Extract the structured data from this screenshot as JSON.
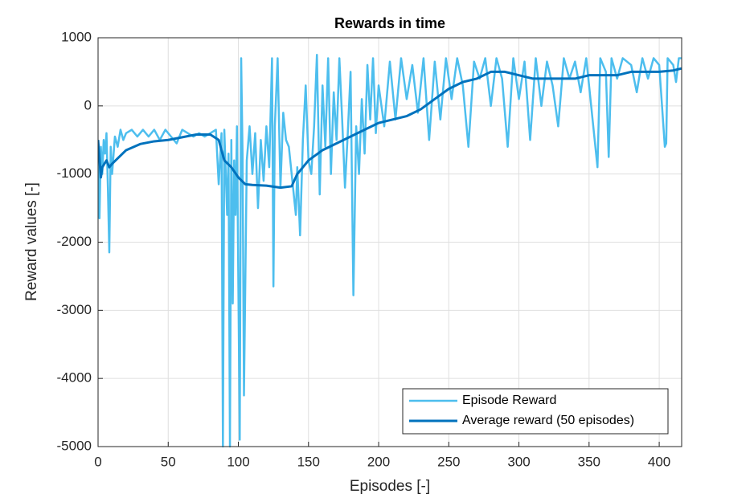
{
  "chart_data": {
    "type": "line",
    "title": "Rewards in time",
    "xlabel": "Episodes [-]",
    "ylabel": "Reward values [-]",
    "xlim": [
      0,
      416
    ],
    "ylim": [
      -5000,
      1000
    ],
    "xticks": [
      0,
      50,
      100,
      150,
      200,
      250,
      300,
      350,
      400
    ],
    "yticks": [
      1000,
      0,
      -1000,
      -2000,
      -3000,
      -4000,
      -5000
    ],
    "grid": true,
    "legend": "lower right",
    "series": [
      {
        "name": "Episode Reward",
        "color": "#4dbeee",
        "x": [
          0,
          1,
          2,
          3,
          4,
          5,
          6,
          7,
          8,
          9,
          10,
          12,
          14,
          16,
          18,
          20,
          24,
          28,
          32,
          36,
          40,
          44,
          48,
          52,
          56,
          60,
          64,
          68,
          72,
          76,
          80,
          84,
          86,
          88,
          89,
          90,
          92,
          93,
          94,
          95,
          96,
          97,
          98,
          99,
          101,
          102,
          103,
          104,
          106,
          108,
          110,
          112,
          114,
          116,
          118,
          120,
          122,
          124,
          125,
          126,
          128,
          130,
          132,
          134,
          136,
          138,
          140,
          141,
          142,
          144,
          146,
          148,
          150,
          152,
          154,
          156,
          158,
          160,
          162,
          164,
          166,
          168,
          170,
          172,
          174,
          176,
          178,
          180,
          182,
          184,
          186,
          188,
          190,
          192,
          194,
          196,
          198,
          200,
          204,
          208,
          212,
          216,
          220,
          224,
          228,
          232,
          236,
          240,
          244,
          248,
          252,
          256,
          260,
          264,
          268,
          272,
          276,
          280,
          284,
          288,
          292,
          296,
          300,
          304,
          308,
          312,
          316,
          320,
          324,
          328,
          332,
          336,
          340,
          344,
          348,
          355,
          356,
          358,
          362,
          364,
          366,
          370,
          374,
          380,
          384,
          388,
          392,
          396,
          400,
          404,
          405,
          406,
          410,
          412,
          414,
          416
        ],
        "values": [
          -500,
          -1650,
          -600,
          -1000,
          -500,
          -700,
          -400,
          -1200,
          -2150,
          -600,
          -1000,
          -450,
          -600,
          -350,
          -500,
          -400,
          -350,
          -450,
          -350,
          -450,
          -350,
          -500,
          -350,
          -450,
          -550,
          -350,
          -400,
          -450,
          -400,
          -450,
          -400,
          -350,
          -1150,
          -400,
          -5000,
          -350,
          -1600,
          -700,
          -5000,
          -500,
          -2900,
          -800,
          -1600,
          -300,
          -4900,
          700,
          -700,
          -4250,
          -800,
          -300,
          -1000,
          -400,
          -1500,
          -500,
          -1100,
          -300,
          -900,
          700,
          -2650,
          -300,
          700,
          -1200,
          -100,
          -500,
          -600,
          -1000,
          -1400,
          -1600,
          -900,
          -1900,
          -500,
          300,
          -800,
          -1000,
          -300,
          750,
          -1300,
          300,
          -600,
          700,
          -1000,
          200,
          -500,
          700,
          -200,
          -1200,
          -400,
          500,
          -2780,
          -300,
          -1000,
          100,
          -700,
          600,
          -200,
          700,
          -400,
          300,
          -300,
          650,
          -200,
          700,
          100,
          600,
          -100,
          700,
          -500,
          650,
          -200,
          700,
          100,
          700,
          300,
          -600,
          650,
          400,
          700,
          0,
          700,
          400,
          -600,
          700,
          100,
          650,
          -500,
          700,
          0,
          650,
          300,
          -300,
          700,
          400,
          650,
          200,
          700,
          -700,
          -900,
          700,
          500,
          -750,
          700,
          400,
          700,
          600,
          200,
          700,
          400,
          700,
          600,
          -600,
          -550,
          700,
          600,
          350,
          700,
          700
        ]
      },
      {
        "name": "Average reward (50 episodes)",
        "color": "#0072bd",
        "x": [
          0,
          2,
          3,
          6,
          8,
          10,
          20,
          30,
          40,
          50,
          60,
          70,
          80,
          86,
          90,
          95,
          100,
          105,
          110,
          120,
          130,
          138,
          142,
          150,
          160,
          170,
          180,
          190,
          200,
          210,
          220,
          230,
          240,
          250,
          260,
          270,
          280,
          290,
          300,
          310,
          320,
          330,
          340,
          350,
          360,
          370,
          380,
          390,
          400,
          410,
          416
        ],
        "values": [
          -500,
          -1050,
          -900,
          -800,
          -900,
          -850,
          -650,
          -560,
          -520,
          -500,
          -460,
          -420,
          -420,
          -500,
          -800,
          -900,
          -1050,
          -1150,
          -1160,
          -1170,
          -1200,
          -1180,
          -1000,
          -800,
          -650,
          -550,
          -450,
          -350,
          -250,
          -200,
          -150,
          -50,
          100,
          250,
          350,
          400,
          500,
          500,
          450,
          400,
          400,
          400,
          400,
          450,
          450,
          450,
          500,
          500,
          500,
          520,
          550
        ]
      }
    ]
  }
}
